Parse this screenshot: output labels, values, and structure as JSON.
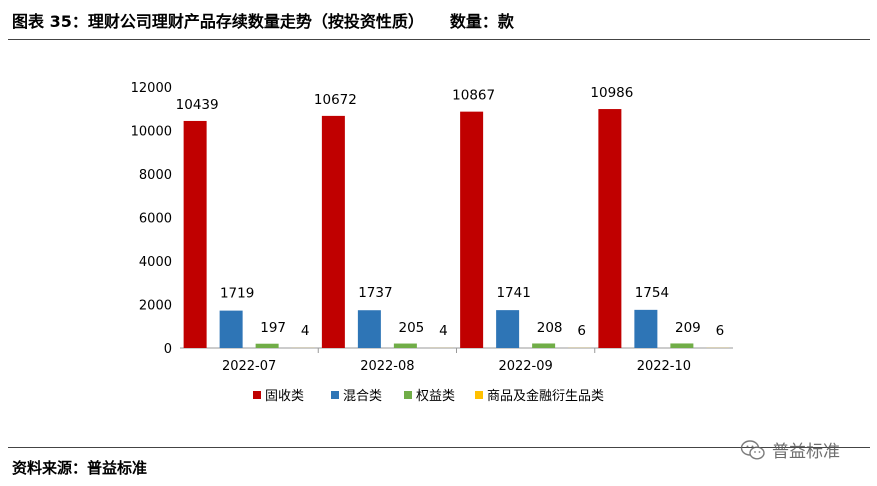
{
  "header": {
    "title": "图表 35：理财公司理财产品存续数量走势（按投资性质）",
    "unit": "数量：款"
  },
  "footer": {
    "source": "资料来源：普益标准",
    "watermark": "普益标准",
    "watermark_icon": "wechat-icon"
  },
  "chart_data": {
    "type": "bar",
    "categories": [
      "2022-07",
      "2022-08",
      "2022-09",
      "2022-10"
    ],
    "series": [
      {
        "name": "固收类",
        "color": "#C00000",
        "values": [
          10439,
          10672,
          10867,
          10986
        ]
      },
      {
        "name": "混合类",
        "color": "#2E75B6",
        "values": [
          1719,
          1737,
          1741,
          1754
        ]
      },
      {
        "name": "权益类",
        "color": "#70AD47",
        "values": [
          197,
          205,
          208,
          209
        ]
      },
      {
        "name": "商品及金融衍生品类",
        "color": "#FFC000",
        "values": [
          4,
          4,
          6,
          6
        ]
      }
    ],
    "y_ticks": [
      "0",
      "2000",
      "4000",
      "6000",
      "8000",
      "10000",
      "12000"
    ],
    "ylim": [
      0,
      12000
    ],
    "grid": false,
    "legend": "bottom"
  }
}
